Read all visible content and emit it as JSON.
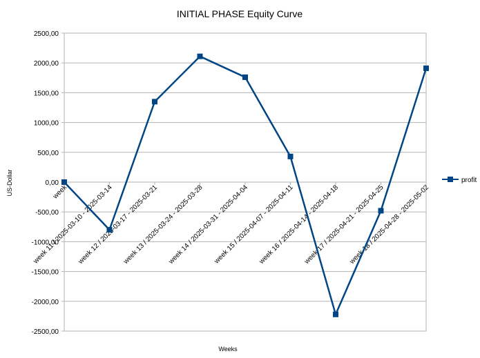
{
  "chart_data": {
    "type": "line",
    "title": "INITIAL PHASE Equity Curve",
    "xlabel": "Weeks",
    "ylabel": "US-Dollar",
    "ylim": [
      -2500,
      2500
    ],
    "ytick_labels": [
      "2500,00",
      "2000,00",
      "1500,00",
      "1000,00",
      "500,00",
      "0,00",
      "-500,00",
      "-1000,00",
      "-1500,00",
      "-2000,00",
      "-2500,00"
    ],
    "grid": true,
    "legend_position": "right",
    "categories": [
      "week",
      "week 11 / 2025-03-10 - 2025-03-14",
      "week 12 / 2025-03-17 - 2025-03-21",
      "week 13 / 2025-03-24 - 2025-03-28",
      "week 14 / 2025-03-31 - 2025-04-04",
      "week 15 / 2025-04-07 - 2025-04-11",
      "week 16 / 2025-04-14 - 2025-04-18",
      "week 17 / 2025-04-21 - 2025-04-25",
      "week 18 / 2025-04-28 - 2025-05-02"
    ],
    "series": [
      {
        "name": "profit",
        "color": "#004586",
        "values": [
          0,
          -800,
          1350,
          2110,
          1760,
          430,
          -2220,
          -480,
          1910
        ]
      }
    ]
  }
}
